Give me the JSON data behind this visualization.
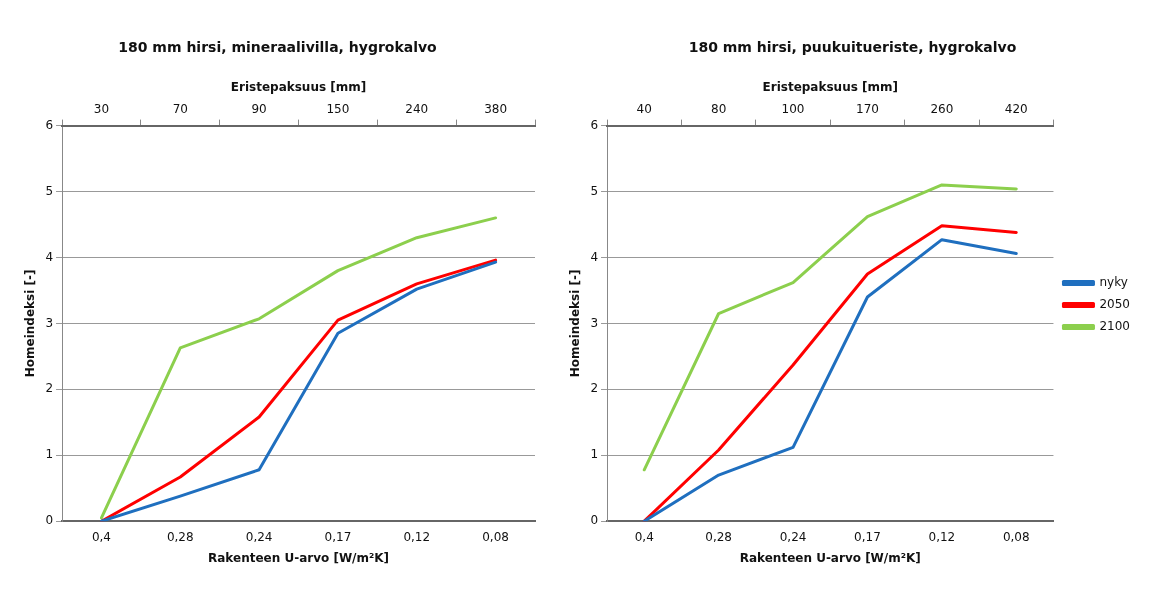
{
  "chart_data": [
    {
      "type": "line",
      "title": "180 mm hirsi, mineraalivilla, hygrokalvo",
      "xlabel": "Rakenteen U-arvo [W/m²K]",
      "ylabel": "Homeindeksi [-]",
      "x2label": "Eristepaksuus [mm]",
      "categories": [
        "0,4",
        "0,28",
        "0,24",
        "0,17",
        "0,12",
        "0,08"
      ],
      "annotations": [
        "30",
        "70",
        "90",
        "150",
        "240",
        "380"
      ],
      "ylim": [
        0,
        6
      ],
      "yticks": [
        0,
        1,
        2,
        3,
        4,
        5,
        6
      ],
      "grid": "y",
      "legend": false,
      "marker": "none",
      "series": [
        {
          "color": "#1f6fbf",
          "values": [
            0,
            0.38,
            0.78,
            2.85,
            3.52,
            3.93
          ]
        },
        {
          "color": "#ff0000",
          "values": [
            0,
            0.67,
            1.58,
            3.05,
            3.6,
            3.96
          ]
        },
        {
          "color": "#8ccf4d",
          "values": [
            0.05,
            2.63,
            3.07,
            3.8,
            4.3,
            4.6
          ]
        }
      ]
    },
    {
      "type": "line",
      "title": "180 mm hirsi, puukuitueriste, hygrokalvo",
      "xlabel": "Rakenteen U-arvo [W/m²K]",
      "ylabel": "Homeindeksi [-]",
      "x2label": "Eristepaksuus [mm]",
      "categories": [
        "0,4",
        "0,28",
        "0,24",
        "0,17",
        "0,12",
        "0,08"
      ],
      "annotations": [
        "40",
        "80",
        "100",
        "170",
        "260",
        "420"
      ],
      "ylim": [
        0,
        6
      ],
      "yticks": [
        0,
        1,
        2,
        3,
        4,
        5,
        6
      ],
      "grid": "y",
      "legend": "right",
      "marker": "none",
      "series": [
        {
          "name": "nyky",
          "color": "#1f6fbf",
          "values": [
            0,
            0.7,
            1.12,
            3.4,
            4.27,
            4.06
          ]
        },
        {
          "name": "2050",
          "color": "#ff0000",
          "values": [
            0,
            1.08,
            2.37,
            3.75,
            4.48,
            4.38
          ]
        },
        {
          "name": "2100",
          "color": "#8ccf4d",
          "values": [
            0.78,
            3.15,
            3.62,
            4.62,
            5.1,
            5.04
          ]
        }
      ]
    }
  ]
}
